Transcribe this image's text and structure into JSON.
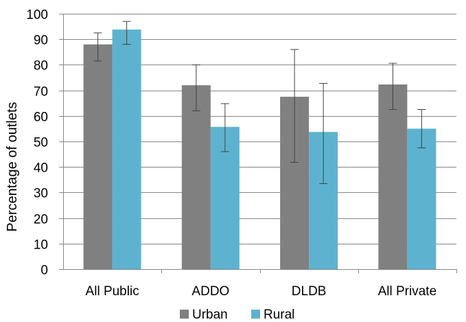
{
  "chart_data": {
    "type": "bar",
    "categories": [
      "All Public",
      "ADDO",
      "DLDB",
      "All Private"
    ],
    "series": [
      {
        "name": "Urban",
        "color": "#808080",
        "values": [
          88,
          72,
          67.5,
          72.3
        ],
        "error_low": [
          81.5,
          62,
          41.8,
          62.5
        ],
        "error_high": [
          92.5,
          80,
          86,
          80.6
        ]
      },
      {
        "name": "Rural",
        "color": "#5db3cf",
        "values": [
          93.8,
          55.7,
          53.7,
          55
        ],
        "error_low": [
          88,
          46,
          33.5,
          47.5
        ],
        "error_high": [
          97,
          64.8,
          72.7,
          62.5
        ]
      }
    ],
    "title": "",
    "xlabel": "",
    "ylabel": "Percentage of outlets",
    "ylim": [
      0,
      100
    ],
    "yticks": [
      0,
      10,
      20,
      30,
      40,
      50,
      60,
      70,
      80,
      90,
      100
    ],
    "grid": true,
    "legend_position": "bottom"
  }
}
